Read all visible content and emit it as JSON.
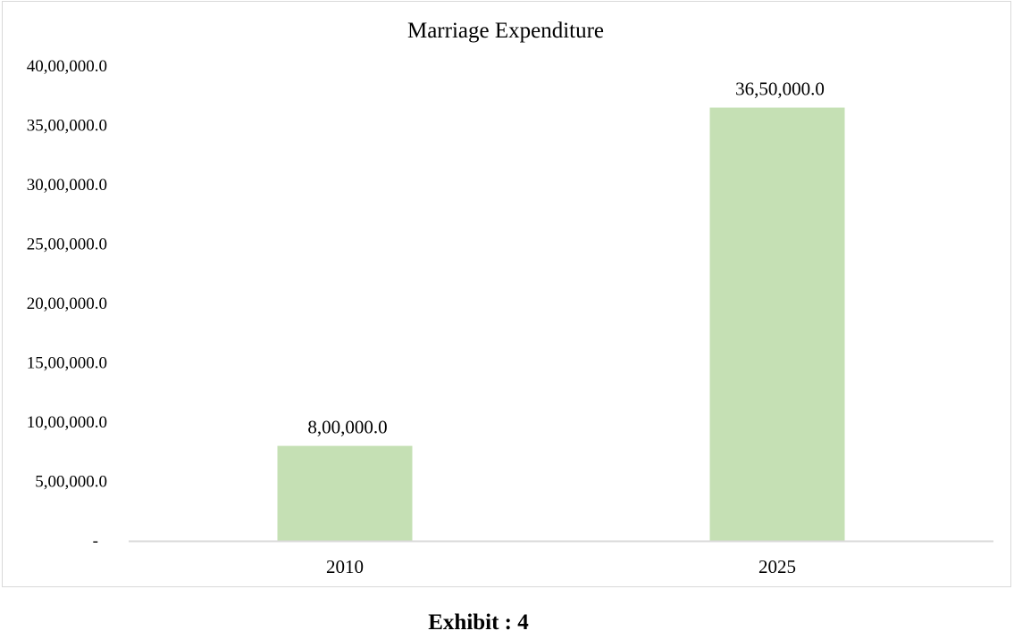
{
  "caption": "Exhibit : 4",
  "chart_data": {
    "type": "bar",
    "title": "Marriage Expenditure",
    "xlabel": "",
    "ylabel": "",
    "categories": [
      "2010",
      "2025"
    ],
    "values": [
      800000,
      3650000
    ],
    "data_labels": [
      "8,00,000.0",
      "36,50,000.0"
    ],
    "ylim": [
      0,
      4000000
    ],
    "y_ticks": [
      0,
      500000,
      1000000,
      1500000,
      2000000,
      2500000,
      3000000,
      3500000,
      4000000
    ],
    "y_tick_labels": [
      "-",
      "5,00,000.0",
      "10,00,000.0",
      "15,00,000.0",
      "20,00,000.0",
      "25,00,000.0",
      "30,00,000.0",
      "35,00,000.0",
      "40,00,000.0"
    ],
    "grid": false,
    "legend": "none",
    "bar_color": "#c5e0b4",
    "axis_color": "#d9d9d9"
  }
}
